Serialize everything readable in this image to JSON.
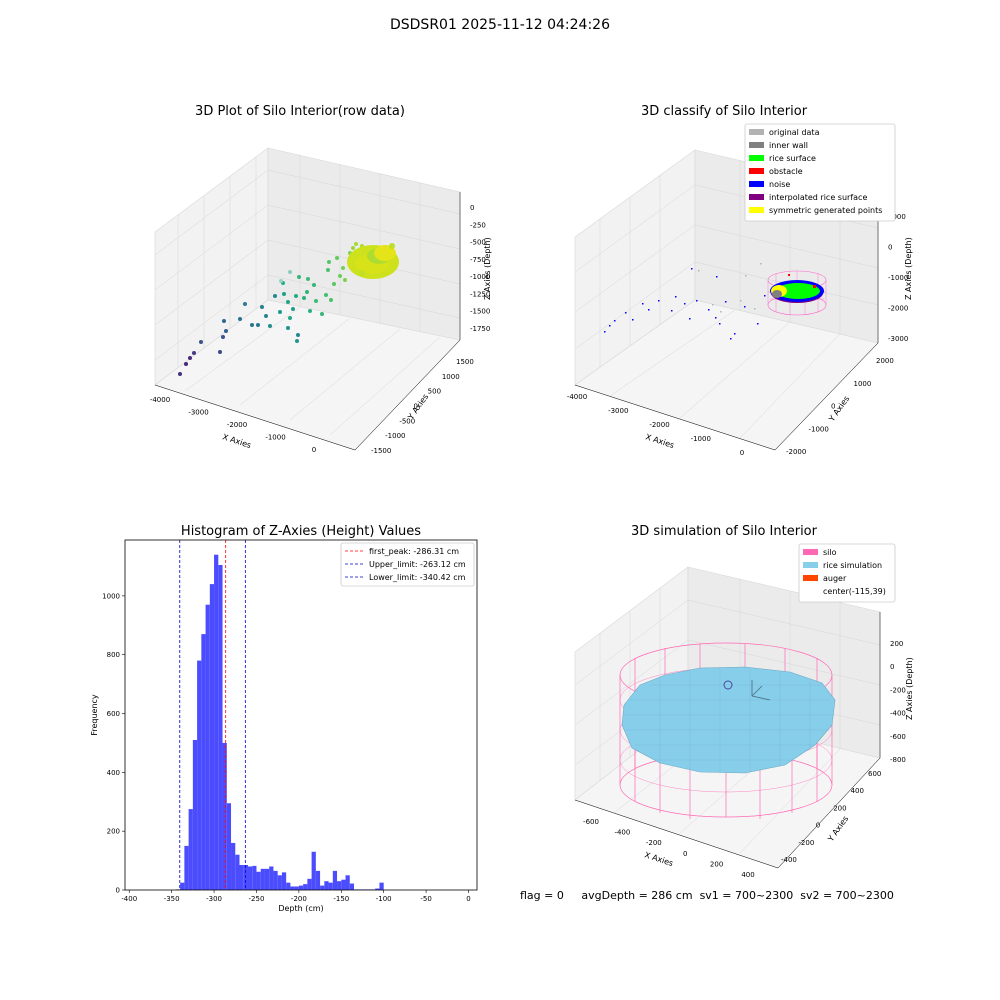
{
  "figure_title": "DSDSR01 2025-11-12 04:24:26",
  "footer": {
    "flag": "flag = 0",
    "avg": "avgDepth = 286 cm",
    "sv1": "sv1 = 700~2300",
    "sv2": "sv2 = 700~2300"
  },
  "chart_data": [
    {
      "type": "scatter",
      "title": "3D Plot of Silo Interior(row data)",
      "xlabel": "X Axies",
      "ylabel": "Y Axies",
      "zlabel": "Z Axies (Depth)",
      "xticks": [
        "-4000",
        "-3000",
        "-2000",
        "-1000",
        "0"
      ],
      "yticks": [
        "-1500",
        "-1000",
        "-500",
        "0",
        "500",
        "1000",
        "1500"
      ],
      "zticks": [
        "0",
        "-250",
        "-500",
        "-750",
        "-1000",
        "-1250",
        "-1500",
        "-1750"
      ],
      "colormap": "viridis"
    },
    {
      "type": "scatter",
      "title": "3D classify of Silo Interior",
      "xlabel": "X Axies",
      "ylabel": "Y Axies",
      "zlabel": "Z Axies (Depth)",
      "xticks": [
        "-4000",
        "-3000",
        "-2000",
        "-1000",
        "0"
      ],
      "yticks": [
        "-2000",
        "-1000",
        "0",
        "1000",
        "2000"
      ],
      "zticks": [
        "1000",
        "0",
        "-1000",
        "-2000",
        "-3000"
      ],
      "legend": [
        {
          "label": "original data",
          "color": "#b3b3b3"
        },
        {
          "label": "inner wall",
          "color": "#808080"
        },
        {
          "label": "rice surface",
          "color": "#00ff00"
        },
        {
          "label": "obstacle",
          "color": "#ff0000"
        },
        {
          "label": "noise",
          "color": "#0000ff"
        },
        {
          "label": "interpolated rice surface",
          "color": "#800080"
        },
        {
          "label": "symmetric generated points",
          "color": "#ffff00"
        }
      ],
      "legend_loc": "top-right"
    },
    {
      "type": "bar",
      "title": "Histogram of Z-Axies (Height) Values",
      "xlabel": "Depth (cm)",
      "ylabel": "Frequency",
      "xlim": [
        -405,
        10
      ],
      "ylim": [
        0,
        1190
      ],
      "xticks": [
        -400,
        -350,
        -300,
        -250,
        -200,
        -150,
        -100,
        -50,
        0
      ],
      "yticks": [
        0,
        200,
        400,
        600,
        800,
        1000
      ],
      "bin_width": 5,
      "bins": [
        {
          "x": -345,
          "y": 2
        },
        {
          "x": -340,
          "y": 25
        },
        {
          "x": -335,
          "y": 150
        },
        {
          "x": -330,
          "y": 275
        },
        {
          "x": -325,
          "y": 510
        },
        {
          "x": -320,
          "y": 780
        },
        {
          "x": -315,
          "y": 870
        },
        {
          "x": -310,
          "y": 970
        },
        {
          "x": -305,
          "y": 1040
        },
        {
          "x": -300,
          "y": 1140
        },
        {
          "x": -295,
          "y": 1105
        },
        {
          "x": -290,
          "y": 500
        },
        {
          "x": -285,
          "y": 295
        },
        {
          "x": -280,
          "y": 160
        },
        {
          "x": -275,
          "y": 120
        },
        {
          "x": -270,
          "y": 85
        },
        {
          "x": -265,
          "y": 85
        },
        {
          "x": -260,
          "y": 80
        },
        {
          "x": -255,
          "y": 82
        },
        {
          "x": -250,
          "y": 62
        },
        {
          "x": -245,
          "y": 72
        },
        {
          "x": -240,
          "y": 72
        },
        {
          "x": -235,
          "y": 80
        },
        {
          "x": -230,
          "y": 65
        },
        {
          "x": -225,
          "y": 50
        },
        {
          "x": -220,
          "y": 60
        },
        {
          "x": -215,
          "y": 25
        },
        {
          "x": -210,
          "y": 12
        },
        {
          "x": -205,
          "y": 12
        },
        {
          "x": -200,
          "y": 15
        },
        {
          "x": -195,
          "y": 20
        },
        {
          "x": -190,
          "y": 38
        },
        {
          "x": -185,
          "y": 130
        },
        {
          "x": -180,
          "y": 65
        },
        {
          "x": -175,
          "y": 15
        },
        {
          "x": -170,
          "y": 30
        },
        {
          "x": -165,
          "y": 25
        },
        {
          "x": -160,
          "y": 65
        },
        {
          "x": -155,
          "y": 30
        },
        {
          "x": -150,
          "y": 35
        },
        {
          "x": -145,
          "y": 50
        },
        {
          "x": -140,
          "y": 22
        },
        {
          "x": -135,
          "y": 2
        },
        {
          "x": -130,
          "y": 2
        },
        {
          "x": -125,
          "y": 2
        },
        {
          "x": -120,
          "y": 2
        },
        {
          "x": -115,
          "y": 2
        },
        {
          "x": -110,
          "y": 5
        },
        {
          "x": -105,
          "y": 25
        }
      ],
      "lines": [
        {
          "label": "first_peak: -286.31 cm",
          "x": -286.31,
          "color": "#ff0000"
        },
        {
          "label": "Upper_limit: -263.12 cm",
          "x": -263.12,
          "color": "#0000cc"
        },
        {
          "label": "Lower_limit: -340.42 cm",
          "x": -340.42,
          "color": "#0000cc"
        }
      ],
      "bar_color": "#4c4cff",
      "legend_loc": "top-right"
    },
    {
      "type": "surface",
      "title": "3D simulation of Silo Interior",
      "xlabel": "X Axies",
      "ylabel": "Y Axies",
      "zlabel": "Z Axies (Depth)",
      "xticks": [
        "-600",
        "-400",
        "-200",
        "0",
        "200",
        "400"
      ],
      "yticks": [
        "-400",
        "-200",
        "0",
        "200",
        "400",
        "600"
      ],
      "zticks": [
        "200",
        "0",
        "-200",
        "-400",
        "-600",
        "-800"
      ],
      "legend": [
        {
          "label": "silo",
          "color": "#ff69b4"
        },
        {
          "label": "rice simulation",
          "color": "#87ceeb"
        },
        {
          "label": "auger",
          "color": "#ff4500"
        },
        {
          "label": "center(-115,39)",
          "color": ""
        }
      ],
      "legend_loc": "top-right"
    }
  ]
}
